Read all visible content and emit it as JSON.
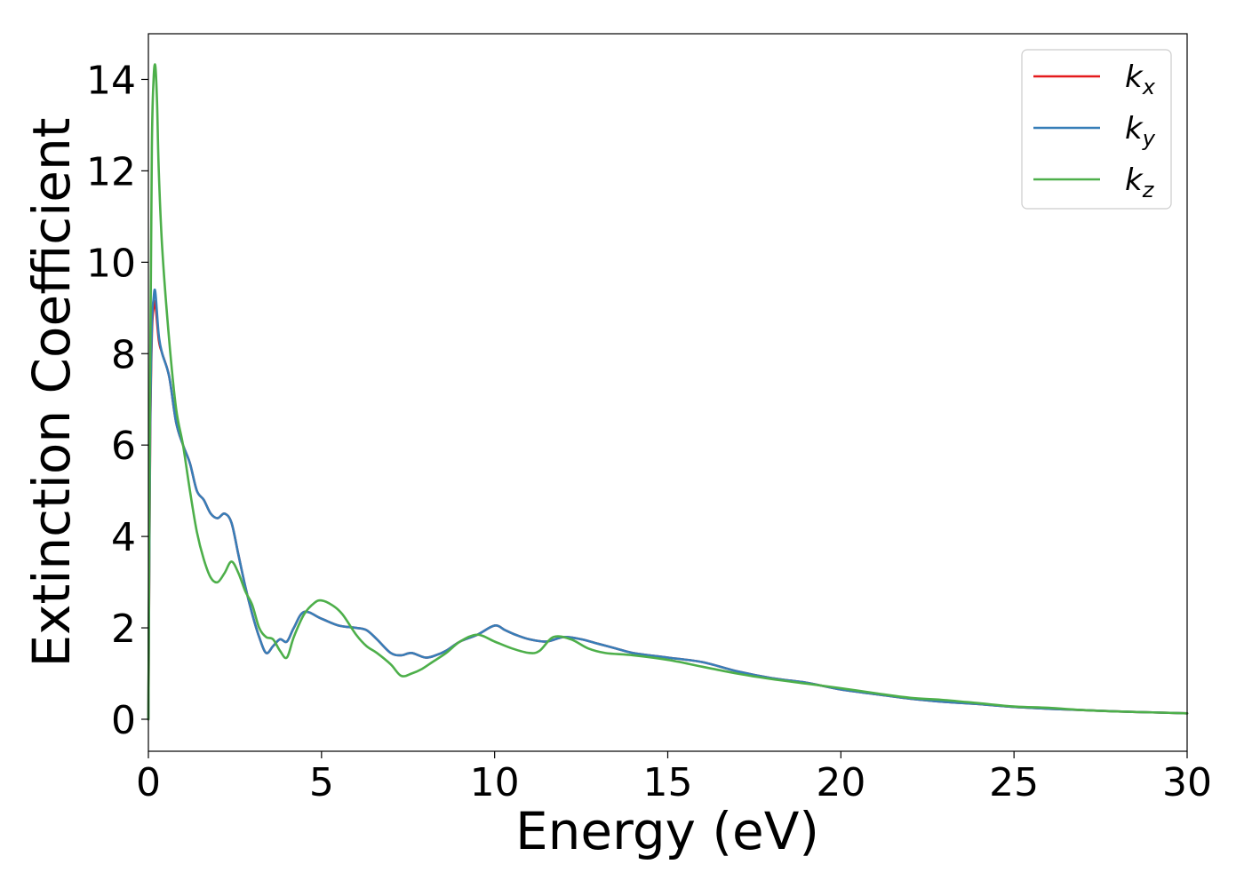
{
  "chart_data": {
    "type": "line",
    "title": "",
    "xlabel": "Energy (eV)",
    "ylabel": "Extinction Coefficient",
    "xlim": [
      0,
      30
    ],
    "ylim": [
      -0.7,
      15
    ],
    "xticks": [
      0,
      5,
      10,
      15,
      20,
      25,
      30
    ],
    "yticks": [
      0,
      2,
      4,
      6,
      8,
      10,
      12,
      14
    ],
    "grid": false,
    "legend_position": "top-right",
    "series": [
      {
        "name": "k",
        "subscript": "x",
        "color": "#e41a1c",
        "x": [
          0,
          0.05,
          0.1,
          0.15,
          0.2,
          0.3,
          0.4,
          0.6,
          0.8,
          1.0,
          1.2,
          1.4,
          1.6,
          1.8,
          2.0,
          2.2,
          2.4,
          2.6,
          2.8,
          3.0,
          3.2,
          3.4,
          3.6,
          3.8,
          4.0,
          4.2,
          4.5,
          5.0,
          5.5,
          6.0,
          6.3,
          6.6,
          7.0,
          7.3,
          7.6,
          8.0,
          8.3,
          8.6,
          9.0,
          9.5,
          10.0,
          10.3,
          10.6,
          11.0,
          11.5,
          12.0,
          12.5,
          13.0,
          13.5,
          14.0,
          15.0,
          16.0,
          17.0,
          18.0,
          19.0,
          20.0,
          21.0,
          22.0,
          23.0,
          24.0,
          25.0,
          26.0,
          27.0,
          28.0,
          29.0,
          30.0
        ],
        "y": [
          0,
          6.0,
          8.4,
          9.0,
          9.1,
          8.3,
          8.0,
          7.5,
          6.5,
          6.0,
          5.6,
          5.0,
          4.8,
          4.5,
          4.4,
          4.5,
          4.3,
          3.6,
          2.9,
          2.3,
          1.8,
          1.45,
          1.6,
          1.75,
          1.7,
          2.0,
          2.35,
          2.2,
          2.05,
          2.0,
          1.95,
          1.75,
          1.45,
          1.4,
          1.45,
          1.35,
          1.4,
          1.5,
          1.7,
          1.85,
          2.05,
          1.95,
          1.85,
          1.75,
          1.7,
          1.8,
          1.75,
          1.65,
          1.55,
          1.45,
          1.35,
          1.25,
          1.05,
          0.9,
          0.8,
          0.65,
          0.55,
          0.45,
          0.38,
          0.33,
          0.27,
          0.23,
          0.2,
          0.17,
          0.15,
          0.13
        ]
      },
      {
        "name": "k",
        "subscript": "y",
        "color": "#377eb8",
        "x": [
          0,
          0.05,
          0.1,
          0.15,
          0.2,
          0.3,
          0.4,
          0.6,
          0.8,
          1.0,
          1.2,
          1.4,
          1.6,
          1.8,
          2.0,
          2.2,
          2.4,
          2.6,
          2.8,
          3.0,
          3.2,
          3.4,
          3.6,
          3.8,
          4.0,
          4.2,
          4.5,
          5.0,
          5.5,
          6.0,
          6.3,
          6.6,
          7.0,
          7.3,
          7.6,
          8.0,
          8.3,
          8.6,
          9.0,
          9.5,
          10.0,
          10.3,
          10.6,
          11.0,
          11.5,
          12.0,
          12.5,
          13.0,
          13.5,
          14.0,
          15.0,
          16.0,
          17.0,
          18.0,
          19.0,
          20.0,
          21.0,
          22.0,
          23.0,
          24.0,
          25.0,
          26.0,
          27.0,
          28.0,
          29.0,
          30.0
        ],
        "y": [
          0,
          6.2,
          8.6,
          9.2,
          9.35,
          8.4,
          8.0,
          7.5,
          6.5,
          6.0,
          5.6,
          5.0,
          4.8,
          4.5,
          4.4,
          4.5,
          4.3,
          3.6,
          2.9,
          2.3,
          1.8,
          1.45,
          1.6,
          1.75,
          1.7,
          2.0,
          2.35,
          2.2,
          2.05,
          2.0,
          1.95,
          1.75,
          1.45,
          1.4,
          1.45,
          1.35,
          1.4,
          1.5,
          1.7,
          1.85,
          2.05,
          1.95,
          1.85,
          1.75,
          1.7,
          1.8,
          1.75,
          1.65,
          1.55,
          1.45,
          1.35,
          1.25,
          1.05,
          0.9,
          0.8,
          0.65,
          0.55,
          0.45,
          0.38,
          0.33,
          0.27,
          0.23,
          0.2,
          0.17,
          0.15,
          0.13
        ]
      },
      {
        "name": "k",
        "subscript": "z",
        "color": "#4daf4a",
        "x": [
          0,
          0.05,
          0.1,
          0.15,
          0.2,
          0.25,
          0.3,
          0.4,
          0.6,
          0.8,
          1.0,
          1.2,
          1.4,
          1.6,
          1.8,
          2.0,
          2.2,
          2.4,
          2.6,
          2.8,
          3.0,
          3.2,
          3.4,
          3.6,
          3.8,
          4.0,
          4.2,
          4.5,
          4.8,
          5.0,
          5.3,
          5.6,
          6.0,
          6.3,
          6.6,
          7.0,
          7.3,
          7.6,
          7.9,
          8.2,
          8.6,
          9.0,
          9.5,
          10.0,
          10.5,
          11.0,
          11.3,
          11.7,
          12.2,
          12.7,
          13.2,
          14.0,
          15.0,
          16.0,
          17.0,
          18.0,
          19.0,
          20.0,
          21.0,
          22.0,
          23.0,
          24.0,
          25.0,
          26.0,
          27.0,
          28.0,
          29.0,
          30.0
        ],
        "y": [
          0,
          7.5,
          12.5,
          14.0,
          14.3,
          13.5,
          12.0,
          10.3,
          8.3,
          6.8,
          6.0,
          5.0,
          4.1,
          3.5,
          3.1,
          3.0,
          3.2,
          3.45,
          3.2,
          2.8,
          2.5,
          2.0,
          1.8,
          1.75,
          1.5,
          1.35,
          1.8,
          2.3,
          2.55,
          2.6,
          2.5,
          2.3,
          1.85,
          1.6,
          1.45,
          1.2,
          0.95,
          1.0,
          1.1,
          1.25,
          1.45,
          1.7,
          1.85,
          1.7,
          1.55,
          1.45,
          1.5,
          1.8,
          1.75,
          1.55,
          1.45,
          1.4,
          1.3,
          1.15,
          1.0,
          0.88,
          0.78,
          0.68,
          0.57,
          0.47,
          0.42,
          0.35,
          0.28,
          0.25,
          0.2,
          0.17,
          0.15,
          0.13
        ]
      }
    ]
  }
}
